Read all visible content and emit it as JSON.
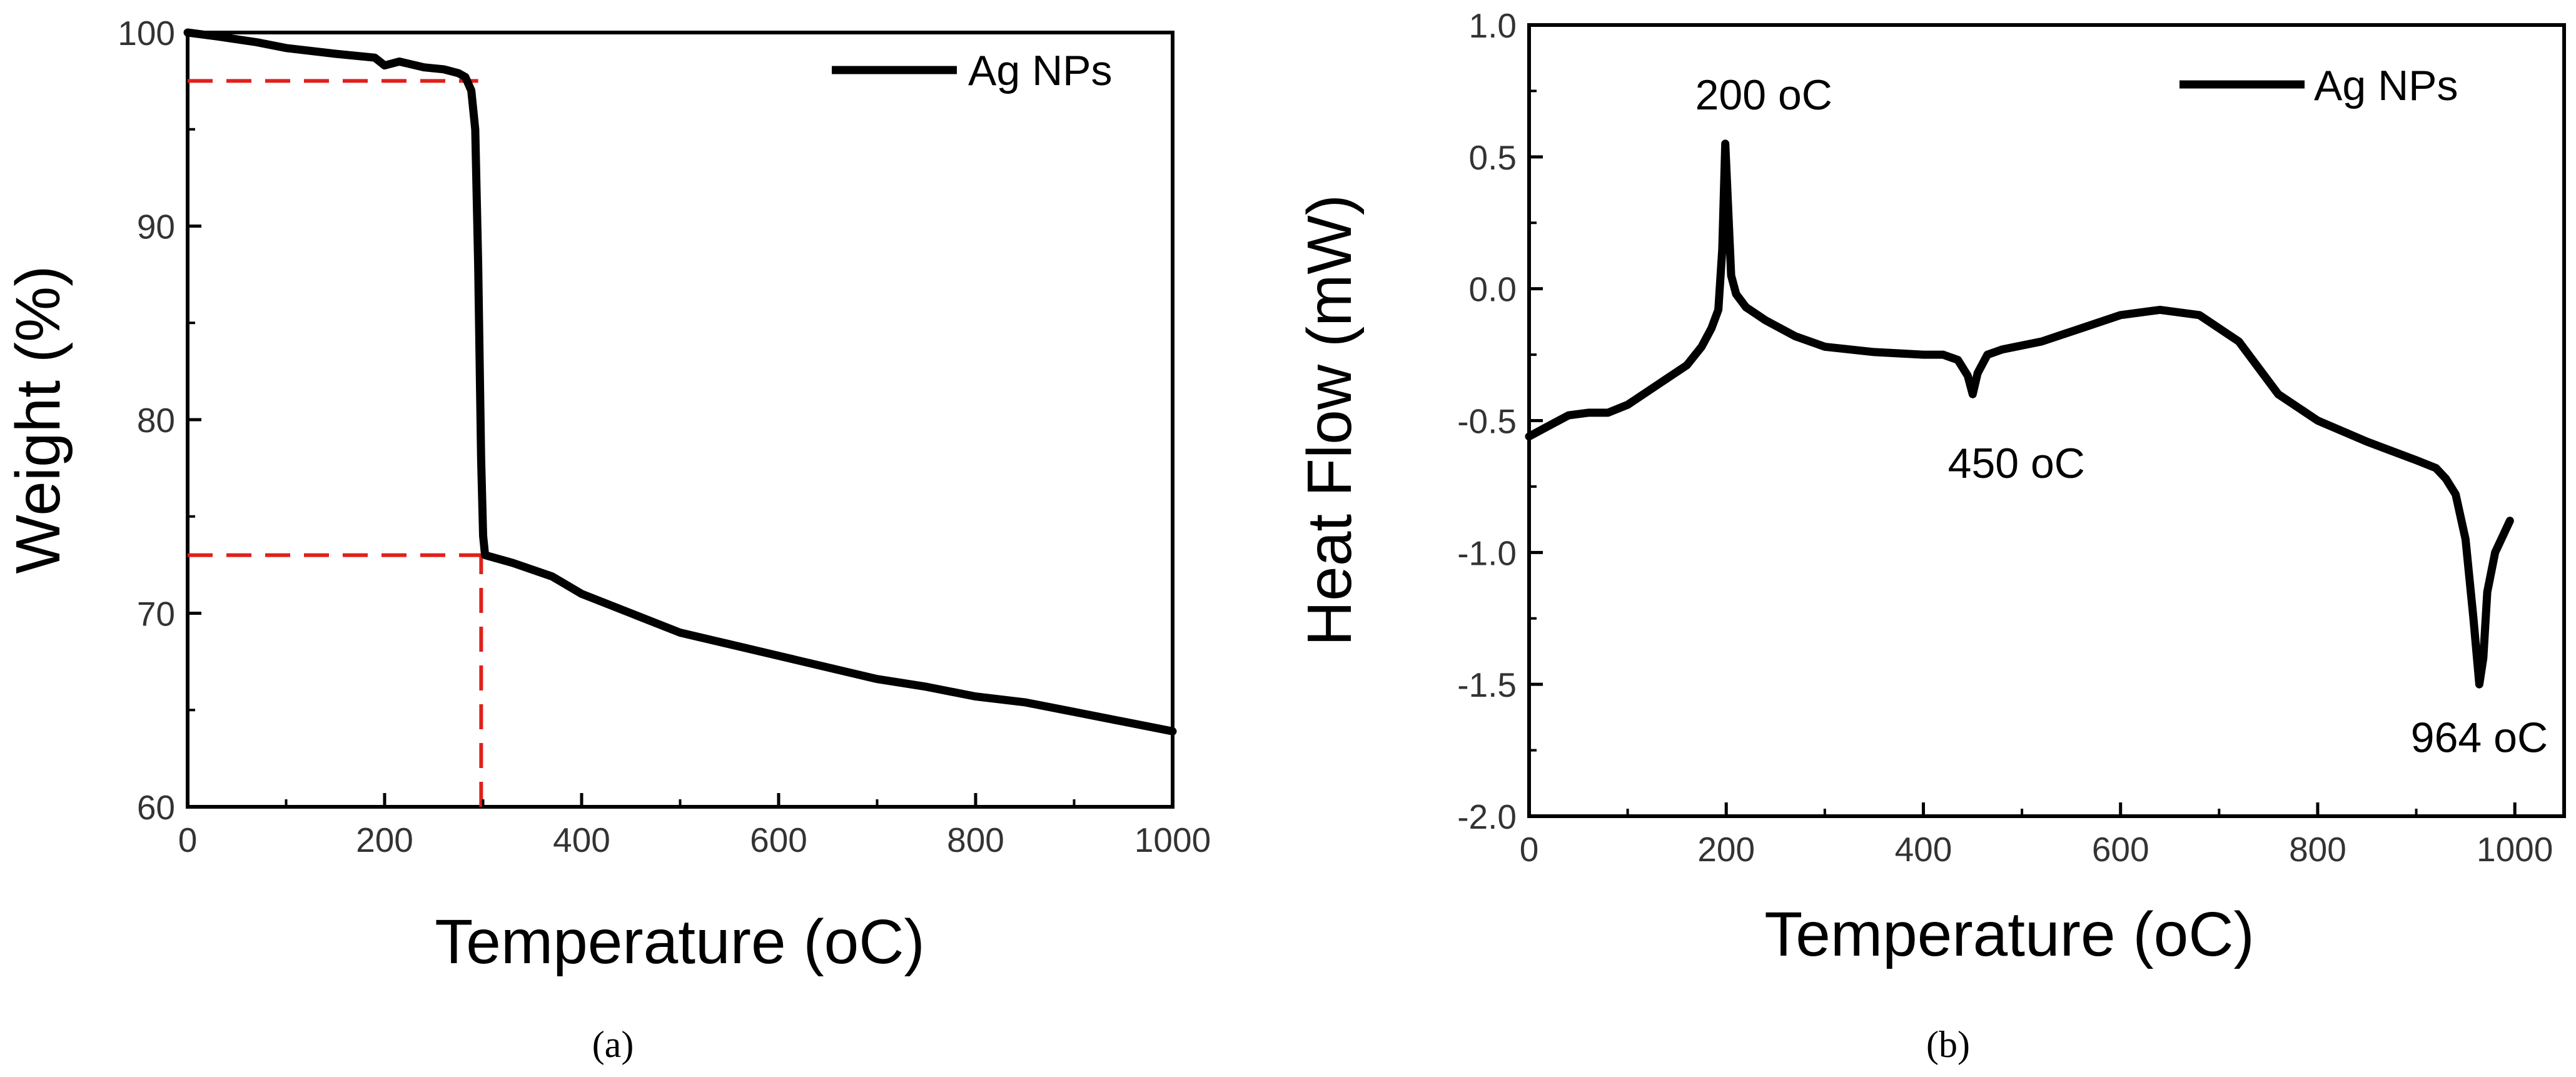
{
  "chart_data": [
    {
      "panel": "a",
      "caption": "(a)",
      "type": "line",
      "xlabel": "Temperature (oC)",
      "ylabel": "Weight (%)",
      "xlim": [
        0,
        1000
      ],
      "ylim": [
        60,
        100
      ],
      "xticks": [
        0,
        200,
        400,
        600,
        800,
        1000
      ],
      "yticks": [
        60,
        70,
        80,
        90,
        100
      ],
      "legend": {
        "position": "top-right",
        "entries": [
          "Ag NPs"
        ]
      },
      "series": [
        {
          "name": "Ag NPs",
          "color": "#000000",
          "x": [
            0,
            30,
            70,
            100,
            150,
            190,
            200,
            215,
            240,
            260,
            275,
            282,
            288,
            292,
            295,
            298,
            300,
            302,
            330,
            370,
            400,
            450,
            500,
            550,
            600,
            650,
            700,
            750,
            800,
            850,
            900,
            950,
            1000
          ],
          "y": [
            100,
            99.8,
            99.5,
            99.2,
            98.9,
            98.7,
            98.3,
            98.5,
            98.2,
            98.1,
            97.9,
            97.7,
            97.0,
            95.0,
            88.0,
            78.0,
            74.0,
            73.0,
            72.6,
            71.9,
            71.0,
            70.0,
            69.0,
            68.4,
            67.8,
            67.2,
            66.6,
            66.2,
            65.7,
            65.4,
            64.9,
            64.4,
            63.9
          ]
        }
      ],
      "reference_lines": [
        {
          "orientation": "horizontal",
          "y": 97.5,
          "x_from": 0,
          "x_to": 295,
          "color": "#e0201b",
          "style": "dashed"
        },
        {
          "orientation": "horizontal",
          "y": 73,
          "x_from": 0,
          "x_to": 300,
          "color": "#e0201b",
          "style": "dashed"
        },
        {
          "orientation": "vertical",
          "x": 298,
          "y_from": 60,
          "y_to": 73,
          "color": "#e0201b",
          "style": "dashed"
        }
      ]
    },
    {
      "panel": "b",
      "caption": "(b)",
      "type": "line",
      "xlabel": "Temperature (oC)",
      "ylabel": "Heat Flow (mW)",
      "xlim": [
        0,
        1050
      ],
      "ylim": [
        -2.0,
        1.0
      ],
      "xticks": [
        0,
        200,
        400,
        600,
        800,
        1000
      ],
      "yticks": [
        -2.0,
        -1.5,
        -1.0,
        -0.5,
        0.0,
        0.5,
        1.0
      ],
      "legend": {
        "position": "top-right",
        "entries": [
          "Ag NPs"
        ]
      },
      "annotations": [
        {
          "text": "200 oC",
          "x": 200,
          "y": 0.55
        },
        {
          "text": "450 oC",
          "x": 450,
          "y": -0.42
        },
        {
          "text": "964 oC",
          "x": 964,
          "y": -1.52
        }
      ],
      "series": [
        {
          "name": "Ag NPs",
          "color": "#000000",
          "x": [
            0,
            20,
            40,
            60,
            80,
            100,
            120,
            140,
            160,
            175,
            185,
            192,
            196,
            199,
            202,
            205,
            210,
            220,
            240,
            270,
            300,
            350,
            400,
            420,
            435,
            445,
            450,
            455,
            465,
            480,
            520,
            560,
            600,
            640,
            680,
            720,
            760,
            800,
            850,
            900,
            920,
            930,
            940,
            950,
            958,
            964,
            968,
            972,
            980,
            990,
            995
          ],
          "y": [
            -0.56,
            -0.52,
            -0.48,
            -0.47,
            -0.47,
            -0.44,
            -0.39,
            -0.34,
            -0.29,
            -0.22,
            -0.15,
            -0.08,
            0.15,
            0.55,
            0.3,
            0.05,
            -0.02,
            -0.07,
            -0.12,
            -0.18,
            -0.22,
            -0.24,
            -0.25,
            -0.25,
            -0.27,
            -0.33,
            -0.4,
            -0.32,
            -0.25,
            -0.23,
            -0.2,
            -0.15,
            -0.1,
            -0.08,
            -0.1,
            -0.2,
            -0.4,
            -0.5,
            -0.58,
            -0.65,
            -0.68,
            -0.72,
            -0.78,
            -0.95,
            -1.25,
            -1.5,
            -1.4,
            -1.15,
            -1.0,
            -0.92,
            -0.88
          ]
        }
      ]
    }
  ]
}
